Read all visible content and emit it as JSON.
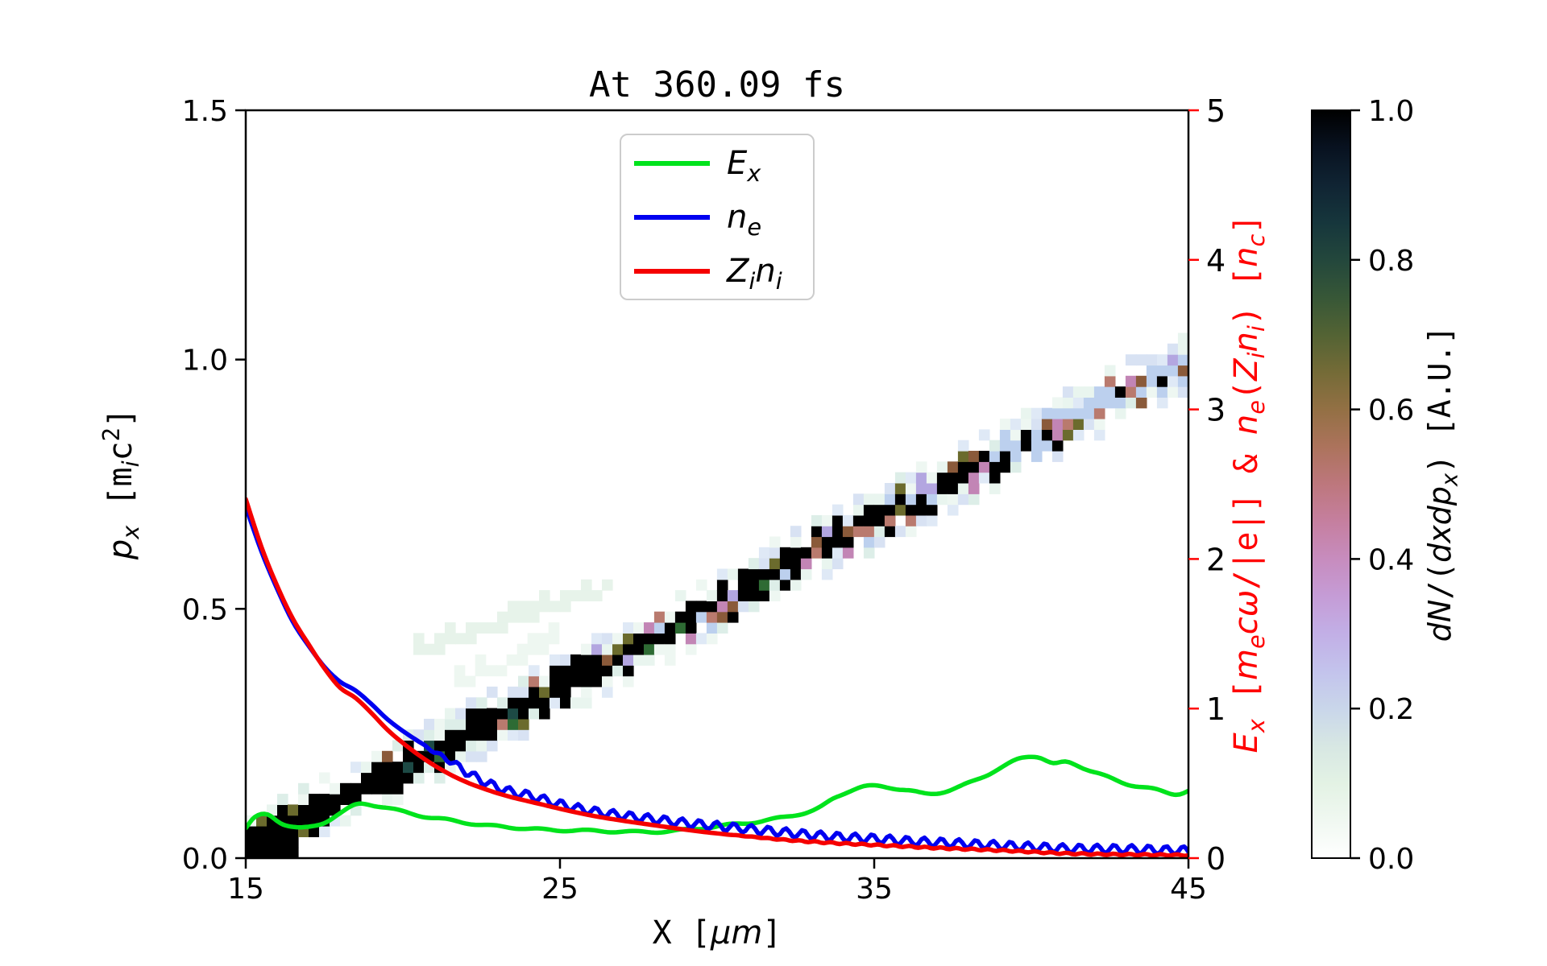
{
  "title": "At 360.09 fs",
  "colors": {
    "ex_green": "#00e31c",
    "ne_blue": "#0000f0",
    "zini_red": "#f50000",
    "right_axis_red": "#ff0000",
    "spine_black": "#000000",
    "legend_border": "#cccccc",
    "background": "#ffffff"
  },
  "axes": {
    "x": {
      "label_segments": [
        {
          "t": "X ",
          "mono": 1
        },
        {
          "t": "[",
          "mono": 1
        },
        {
          "t": "μm",
          "i": 1
        },
        {
          "t": "]",
          "mono": 1
        }
      ],
      "tick_labels": [
        "15",
        "25",
        "35",
        "45"
      ],
      "tick_values": [
        15,
        25,
        35,
        45
      ],
      "range": [
        15,
        45
      ]
    },
    "y_left": {
      "label_segments": [
        {
          "t": "p",
          "i": 1
        },
        {
          "t": "x",
          "i": 1,
          "sub": 1
        },
        {
          "t": " [",
          "mono": 1
        },
        {
          "t": "m",
          "mono": 1
        },
        {
          "t": "i",
          "i": 1,
          "sub": 1
        },
        {
          "t": "c",
          "mono": 1
        },
        {
          "t": "2",
          "mono": 1,
          "sup": 1
        },
        {
          "t": "]",
          "mono": 1
        }
      ],
      "tick_labels": [
        "0.0",
        "0.5",
        "1.0",
        "1.5"
      ],
      "tick_values": [
        0,
        0.5,
        1.0,
        1.5
      ],
      "range": [
        0,
        1.5
      ]
    },
    "y_right": {
      "label_segments": [
        {
          "t": "E",
          "i": 1
        },
        {
          "t": "x",
          "i": 1,
          "sub": 1
        },
        {
          "t": " [",
          "mono": 1
        },
        {
          "t": "m",
          "i": 1
        },
        {
          "t": "e",
          "i": 1,
          "sub": 1
        },
        {
          "t": "c",
          "i": 1
        },
        {
          "t": "ω",
          "i": 1
        },
        {
          "t": "/|e|]",
          "mono": 1
        },
        {
          "t": " & ",
          "mono": 1
        },
        {
          "t": "n",
          "i": 1
        },
        {
          "t": "e",
          "i": 1,
          "sub": 1
        },
        {
          "t": "(",
          "mono": 1
        },
        {
          "t": "Z",
          "i": 1
        },
        {
          "t": "i",
          "i": 1,
          "sub": 1
        },
        {
          "t": "n",
          "i": 1
        },
        {
          "t": "i",
          "i": 1,
          "sub": 1
        },
        {
          "t": ")",
          "mono": 1
        },
        {
          "t": " [",
          "mono": 1
        },
        {
          "t": "n",
          "i": 1
        },
        {
          "t": "c",
          "i": 1,
          "sub": 1
        },
        {
          "t": "]",
          "mono": 1
        }
      ],
      "tick_labels": [
        "0",
        "1",
        "2",
        "3",
        "4",
        "5"
      ],
      "tick_values": [
        0,
        1,
        2,
        3,
        4,
        5
      ],
      "range": [
        0,
        5
      ]
    }
  },
  "legend": {
    "entries": [
      {
        "name": "Ex",
        "color": "#00e31c",
        "label_segments": [
          {
            "t": "E",
            "i": 1
          },
          {
            "t": "x",
            "i": 1,
            "sub": 1
          }
        ]
      },
      {
        "name": "ne",
        "color": "#0000f0",
        "label_segments": [
          {
            "t": "n",
            "i": 1
          },
          {
            "t": "e",
            "i": 1,
            "sub": 1
          }
        ]
      },
      {
        "name": "Zini",
        "color": "#f50000",
        "label_segments": [
          {
            "t": "Z",
            "i": 1
          },
          {
            "t": "i",
            "i": 1,
            "sub": 1
          },
          {
            "t": "n",
            "i": 1
          },
          {
            "t": "i",
            "i": 1,
            "sub": 1
          }
        ]
      }
    ]
  },
  "colorbar": {
    "tick_labels": [
      "0.0",
      "0.2",
      "0.4",
      "0.6",
      "0.8",
      "1.0"
    ],
    "tick_values": [
      0,
      0.2,
      0.4,
      0.6,
      0.8,
      1.0
    ],
    "label_segments": [
      {
        "t": "dN",
        "i": 1
      },
      {
        "t": "/(",
        "mono": 1
      },
      {
        "t": "dxdp",
        "i": 1
      },
      {
        "t": "x",
        "i": 1,
        "sub": 1
      },
      {
        "t": ")",
        "mono": 1
      },
      {
        "t": " [A.U.]",
        "mono": 1
      }
    ],
    "stops": [
      {
        "v": 0.0,
        "c": "#ffffff"
      },
      {
        "v": 0.05,
        "c": "#f0f8f1"
      },
      {
        "v": 0.1,
        "c": "#e3f2e4"
      },
      {
        "v": 0.15,
        "c": "#d7e7e3"
      },
      {
        "v": 0.2,
        "c": "#c9d6ea"
      },
      {
        "v": 0.25,
        "c": "#c3c3ec"
      },
      {
        "v": 0.3,
        "c": "#c2afe6"
      },
      {
        "v": 0.35,
        "c": "#c59cd6"
      },
      {
        "v": 0.4,
        "c": "#c78cbe"
      },
      {
        "v": 0.45,
        "c": "#c57f9f"
      },
      {
        "v": 0.5,
        "c": "#bd777d"
      },
      {
        "v": 0.55,
        "c": "#ac735c"
      },
      {
        "v": 0.6,
        "c": "#937044"
      },
      {
        "v": 0.65,
        "c": "#746b37"
      },
      {
        "v": 0.7,
        "c": "#536334"
      },
      {
        "v": 0.75,
        "c": "#375737"
      },
      {
        "v": 0.8,
        "c": "#23473c"
      },
      {
        "v": 0.85,
        "c": "#16363c"
      },
      {
        "v": 0.9,
        "c": "#102433"
      },
      {
        "v": 0.95,
        "c": "#081220"
      },
      {
        "v": 1.0,
        "c": "#000000"
      }
    ]
  },
  "chart_data": {
    "type": "line+heatmap",
    "title": "At 360.09 fs",
    "xlabel": "X [μm]",
    "ylabel_left": "p_x [m_i c^2]",
    "ylabel_right": "E_x [m_e cω/|e|] & n_e(Z_i n_i) [n_c]",
    "colorbar_label": "dN/(dxdp_x) [A.U.]",
    "x_range": [
      15,
      45
    ],
    "y_left_range": [
      0,
      1.5
    ],
    "y_right_range": [
      0,
      5
    ],
    "grid": false,
    "legend_position": "upper center",
    "series": [
      {
        "name": "E_x",
        "axis": "right",
        "color": "#00e31c",
        "width": 5.5,
        "x": [
          15,
          15.3,
          15.7,
          16.2,
          16.8,
          17.4,
          18,
          18.6,
          19.2,
          20,
          20.8,
          21.6,
          22.6,
          23.5,
          24.5,
          25.5,
          26.5,
          27.5,
          28.5,
          29.5,
          30.5,
          31.5,
          32.5,
          33.2,
          33.8,
          34.5,
          35.2,
          36,
          36.7,
          37.5,
          38.2,
          39,
          39.7,
          40.2,
          40.7,
          41.2,
          42,
          43,
          44,
          44.6,
          45
        ],
        "y": [
          0.2,
          0.27,
          0.29,
          0.23,
          0.2,
          0.23,
          0.3,
          0.36,
          0.35,
          0.31,
          0.275,
          0.25,
          0.22,
          0.205,
          0.19,
          0.185,
          0.18,
          0.175,
          0.18,
          0.2,
          0.225,
          0.25,
          0.29,
          0.33,
          0.41,
          0.47,
          0.48,
          0.455,
          0.43,
          0.46,
          0.52,
          0.6,
          0.67,
          0.68,
          0.63,
          0.64,
          0.575,
          0.5,
          0.455,
          0.43,
          0.45
        ],
        "noise": {
          "amp": 0.007,
          "wavelength_um": 1.5,
          "from_x": 15,
          "fade_um": 0.1
        }
      },
      {
        "name": "n_e",
        "axis": "right",
        "color": "#0000f0",
        "width": 5.5,
        "x": [
          15,
          15.5,
          16,
          16.5,
          17,
          17.5,
          18,
          18.5,
          19,
          19.5,
          20,
          20.5,
          21,
          21.5,
          22,
          22.5,
          23,
          23.5,
          24,
          24.5,
          25,
          26,
          27,
          28,
          29,
          30,
          31,
          32,
          33,
          34,
          35,
          36,
          37,
          38,
          39,
          40,
          41,
          42,
          43,
          44,
          45
        ],
        "y": [
          2.35,
          2.05,
          1.8,
          1.58,
          1.42,
          1.28,
          1.18,
          1.12,
          1.03,
          0.93,
          0.85,
          0.78,
          0.71,
          0.65,
          0.58,
          0.52,
          0.475,
          0.44,
          0.42,
          0.39,
          0.36,
          0.315,
          0.285,
          0.26,
          0.235,
          0.215,
          0.195,
          0.175,
          0.155,
          0.14,
          0.13,
          0.115,
          0.105,
          0.095,
          0.085,
          0.075,
          0.065,
          0.062,
          0.06,
          0.055,
          0.05
        ],
        "noise": {
          "amp": 0.028,
          "wavelength_um": 0.55,
          "from_x": 20.5,
          "fade_um": 1.5
        }
      },
      {
        "name": "Z_i n_i",
        "axis": "right",
        "color": "#f50000",
        "width": 5.5,
        "x": [
          15,
          15.5,
          16,
          16.5,
          17,
          17.5,
          18,
          18.5,
          19,
          19.5,
          20,
          20.5,
          21,
          21.5,
          22,
          22.5,
          23,
          23.5,
          24,
          24.5,
          25,
          26,
          27,
          28,
          29,
          30,
          31,
          32,
          33,
          34,
          35,
          36,
          37,
          38,
          39,
          40,
          41,
          42,
          43,
          44,
          45
        ],
        "y": [
          2.4,
          2.08,
          1.82,
          1.6,
          1.43,
          1.27,
          1.14,
          1.07,
          0.97,
          0.86,
          0.77,
          0.69,
          0.62,
          0.56,
          0.51,
          0.47,
          0.435,
          0.405,
          0.38,
          0.355,
          0.33,
          0.285,
          0.25,
          0.22,
          0.19,
          0.165,
          0.145,
          0.125,
          0.11,
          0.098,
          0.088,
          0.078,
          0.068,
          0.06,
          0.052,
          0.042,
          0.032,
          0.027,
          0.024,
          0.022,
          0.02
        ],
        "noise": {
          "amp": 0.005,
          "wavelength_um": 0.5,
          "from_x": 30,
          "fade_um": 3
        }
      }
    ],
    "phase_space_band": {
      "description": "ion phase-space density dN/(dx dpx): linear diagonal band, black (~1.0 A.U.) near target, fading to pink/lavender (~0.2-0.4 A.U.) at the front",
      "x_start": 15,
      "x_end": 45,
      "p_start": 0.02,
      "p_end": 1.0,
      "cell_dx_um": 0.3333,
      "cell_dp": 0.0215,
      "black_prob_near": 0.97,
      "black_prob_far": 0.05,
      "falloff_exp": 2.2,
      "seed": 20240613,
      "core_black": "#000000",
      "speckles": [
        "#141b33",
        "#1d4a45",
        "#2e6b34",
        "#6b6b2d",
        "#8a5a3a",
        "#b97a6e",
        "#c285b5",
        "#b3a6e0",
        "#bcd0ee"
      ],
      "halo": [
        "#ddeee8",
        "#e9f5ef",
        "#dfe9f6",
        "#d8e2f3",
        "#eef7f2"
      ],
      "blob": {
        "x_max": 16.7
      },
      "streaks": [
        {
          "x0": 20.5,
          "p0": 0.4,
          "x1": 26.2,
          "p1": 0.53,
          "color": "#e7f3ea"
        },
        {
          "x0": 21.8,
          "p0": 0.34,
          "x1": 24.6,
          "p1": 0.42,
          "color": "#eef7f1"
        }
      ]
    }
  }
}
